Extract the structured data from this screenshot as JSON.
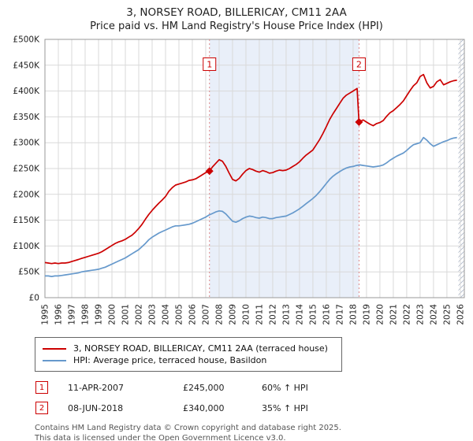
{
  "title": "3, NORSEY ROAD, BILLERICAY, CM11 2AA",
  "subtitle": "Price paid vs. HM Land Registry's House Price Index (HPI)",
  "chart_data": {
    "type": "line",
    "x_range": [
      1995,
      2026.3
    ],
    "y_range_thousands": [
      0,
      500
    ],
    "unit": "GBP thousands",
    "x_ticks": [
      1995,
      1996,
      1997,
      1998,
      1999,
      2000,
      2001,
      2002,
      2003,
      2004,
      2005,
      2006,
      2007,
      2008,
      2009,
      2010,
      2011,
      2012,
      2013,
      2014,
      2015,
      2016,
      2017,
      2018,
      2019,
      2020,
      2021,
      2022,
      2023,
      2024,
      2025,
      2026
    ],
    "y_ticks": [
      [
        0,
        "£0"
      ],
      [
        50,
        "£50K"
      ],
      [
        100,
        "£100K"
      ],
      [
        150,
        "£150K"
      ],
      [
        200,
        "£200K"
      ],
      [
        250,
        "£250K"
      ],
      [
        300,
        "£300K"
      ],
      [
        350,
        "£350K"
      ],
      [
        400,
        "£400K"
      ],
      [
        450,
        "£450K"
      ],
      [
        500,
        "£500K"
      ]
    ],
    "grid": true,
    "legend_position": "bottom",
    "colors": {
      "property": "#cc0000",
      "hpi": "#6699cc",
      "shade": "#e9eff9",
      "grid": "#d9d9d9",
      "event_line": "#dd8888",
      "plot_border": "#999999"
    },
    "shaded_region": [
      2007.28,
      2018.44
    ],
    "hatched_region": [
      2025.85,
      2026.3
    ],
    "event_label_y": 452,
    "series": [
      {
        "name": "3, NORSEY ROAD, BILLERICAY, CM11 2AA (terraced house)",
        "color": "#cc0000",
        "points": [
          [
            1995,
            68
          ],
          [
            1995.25,
            67
          ],
          [
            1995.5,
            66
          ],
          [
            1995.75,
            67
          ],
          [
            1996,
            66
          ],
          [
            1996.25,
            67
          ],
          [
            1996.5,
            67
          ],
          [
            1996.75,
            68
          ],
          [
            1997,
            70
          ],
          [
            1997.25,
            72
          ],
          [
            1997.5,
            74
          ],
          [
            1997.75,
            76
          ],
          [
            1998,
            78
          ],
          [
            1998.25,
            80
          ],
          [
            1998.5,
            82
          ],
          [
            1998.75,
            84
          ],
          [
            1999,
            86
          ],
          [
            1999.25,
            89
          ],
          [
            1999.5,
            93
          ],
          [
            1999.75,
            97
          ],
          [
            2000,
            101
          ],
          [
            2000.25,
            105
          ],
          [
            2000.5,
            108
          ],
          [
            2000.75,
            110
          ],
          [
            2001,
            113
          ],
          [
            2001.25,
            117
          ],
          [
            2001.5,
            121
          ],
          [
            2001.75,
            127
          ],
          [
            2002,
            134
          ],
          [
            2002.25,
            142
          ],
          [
            2002.5,
            152
          ],
          [
            2002.75,
            161
          ],
          [
            2003,
            169
          ],
          [
            2003.25,
            176
          ],
          [
            2003.5,
            183
          ],
          [
            2003.75,
            189
          ],
          [
            2004,
            196
          ],
          [
            2004.25,
            206
          ],
          [
            2004.5,
            213
          ],
          [
            2004.75,
            218
          ],
          [
            2005,
            220
          ],
          [
            2005.25,
            222
          ],
          [
            2005.5,
            224
          ],
          [
            2005.75,
            227
          ],
          [
            2006,
            228
          ],
          [
            2006.25,
            230
          ],
          [
            2006.5,
            234
          ],
          [
            2006.75,
            238
          ],
          [
            2007,
            242
          ],
          [
            2007.28,
            245
          ],
          [
            2007.5,
            253
          ],
          [
            2007.75,
            260
          ],
          [
            2008,
            267
          ],
          [
            2008.25,
            264
          ],
          [
            2008.5,
            254
          ],
          [
            2008.75,
            241
          ],
          [
            2009,
            229
          ],
          [
            2009.25,
            226
          ],
          [
            2009.5,
            231
          ],
          [
            2009.75,
            239
          ],
          [
            2010,
            246
          ],
          [
            2010.25,
            250
          ],
          [
            2010.5,
            248
          ],
          [
            2010.75,
            245
          ],
          [
            2011,
            243
          ],
          [
            2011.25,
            246
          ],
          [
            2011.5,
            244
          ],
          [
            2011.75,
            241
          ],
          [
            2012,
            242
          ],
          [
            2012.25,
            245
          ],
          [
            2012.5,
            247
          ],
          [
            2012.75,
            246
          ],
          [
            2013,
            247
          ],
          [
            2013.25,
            250
          ],
          [
            2013.5,
            254
          ],
          [
            2013.75,
            258
          ],
          [
            2014,
            263
          ],
          [
            2014.25,
            270
          ],
          [
            2014.5,
            276
          ],
          [
            2014.75,
            281
          ],
          [
            2015,
            286
          ],
          [
            2015.25,
            296
          ],
          [
            2015.5,
            306
          ],
          [
            2015.75,
            318
          ],
          [
            2016,
            331
          ],
          [
            2016.25,
            345
          ],
          [
            2016.5,
            356
          ],
          [
            2016.75,
            366
          ],
          [
            2017,
            376
          ],
          [
            2017.25,
            386
          ],
          [
            2017.5,
            392
          ],
          [
            2017.75,
            396
          ],
          [
            2018,
            400
          ],
          [
            2018.3,
            405
          ],
          [
            2018.44,
            340
          ],
          [
            2018.75,
            344
          ],
          [
            2019,
            340
          ],
          [
            2019.25,
            336
          ],
          [
            2019.5,
            333
          ],
          [
            2019.75,
            337
          ],
          [
            2020,
            339
          ],
          [
            2020.25,
            343
          ],
          [
            2020.5,
            351
          ],
          [
            2020.75,
            358
          ],
          [
            2021,
            362
          ],
          [
            2021.25,
            368
          ],
          [
            2021.5,
            374
          ],
          [
            2021.75,
            381
          ],
          [
            2022,
            391
          ],
          [
            2022.25,
            401
          ],
          [
            2022.5,
            410
          ],
          [
            2022.75,
            416
          ],
          [
            2023,
            428
          ],
          [
            2023.25,
            432
          ],
          [
            2023.5,
            416
          ],
          [
            2023.75,
            406
          ],
          [
            2024,
            409
          ],
          [
            2024.25,
            418
          ],
          [
            2024.5,
            422
          ],
          [
            2024.75,
            412
          ],
          [
            2025,
            415
          ],
          [
            2025.25,
            418
          ],
          [
            2025.5,
            420
          ],
          [
            2025.75,
            421
          ]
        ]
      },
      {
        "name": "HPI: Average price, terraced house, Basildon",
        "color": "#6699cc",
        "points": [
          [
            1995,
            42
          ],
          [
            1995.25,
            42
          ],
          [
            1995.5,
            41
          ],
          [
            1995.75,
            42
          ],
          [
            1996,
            42
          ],
          [
            1996.25,
            43
          ],
          [
            1996.5,
            44
          ],
          [
            1996.75,
            45
          ],
          [
            1997,
            46
          ],
          [
            1997.25,
            47
          ],
          [
            1997.5,
            48
          ],
          [
            1997.75,
            50
          ],
          [
            1998,
            51
          ],
          [
            1998.25,
            52
          ],
          [
            1998.5,
            53
          ],
          [
            1998.75,
            54
          ],
          [
            1999,
            55
          ],
          [
            1999.25,
            57
          ],
          [
            1999.5,
            59
          ],
          [
            1999.75,
            62
          ],
          [
            2000,
            65
          ],
          [
            2000.25,
            68
          ],
          [
            2000.5,
            71
          ],
          [
            2000.75,
            74
          ],
          [
            2001,
            77
          ],
          [
            2001.25,
            81
          ],
          [
            2001.5,
            85
          ],
          [
            2001.75,
            89
          ],
          [
            2002,
            93
          ],
          [
            2002.25,
            99
          ],
          [
            2002.5,
            105
          ],
          [
            2002.75,
            112
          ],
          [
            2003,
            117
          ],
          [
            2003.25,
            121
          ],
          [
            2003.5,
            125
          ],
          [
            2003.75,
            128
          ],
          [
            2004,
            131
          ],
          [
            2004.25,
            134
          ],
          [
            2004.5,
            137
          ],
          [
            2004.75,
            139
          ],
          [
            2005,
            139
          ],
          [
            2005.25,
            140
          ],
          [
            2005.5,
            141
          ],
          [
            2005.75,
            142
          ],
          [
            2006,
            144
          ],
          [
            2006.25,
            147
          ],
          [
            2006.5,
            150
          ],
          [
            2006.75,
            153
          ],
          [
            2007,
            156
          ],
          [
            2007.25,
            160
          ],
          [
            2007.5,
            163
          ],
          [
            2007.75,
            166
          ],
          [
            2008,
            168
          ],
          [
            2008.25,
            167
          ],
          [
            2008.5,
            162
          ],
          [
            2008.75,
            155
          ],
          [
            2009,
            148
          ],
          [
            2009.25,
            146
          ],
          [
            2009.5,
            149
          ],
          [
            2009.75,
            153
          ],
          [
            2010,
            156
          ],
          [
            2010.25,
            158
          ],
          [
            2010.5,
            157
          ],
          [
            2010.75,
            155
          ],
          [
            2011,
            154
          ],
          [
            2011.25,
            156
          ],
          [
            2011.5,
            155
          ],
          [
            2011.75,
            153
          ],
          [
            2012,
            153
          ],
          [
            2012.25,
            155
          ],
          [
            2012.5,
            156
          ],
          [
            2012.75,
            157
          ],
          [
            2013,
            158
          ],
          [
            2013.25,
            161
          ],
          [
            2013.5,
            164
          ],
          [
            2013.75,
            168
          ],
          [
            2014,
            172
          ],
          [
            2014.25,
            177
          ],
          [
            2014.5,
            182
          ],
          [
            2014.75,
            187
          ],
          [
            2015,
            192
          ],
          [
            2015.25,
            198
          ],
          [
            2015.5,
            205
          ],
          [
            2015.75,
            213
          ],
          [
            2016,
            221
          ],
          [
            2016.25,
            229
          ],
          [
            2016.5,
            235
          ],
          [
            2016.75,
            240
          ],
          [
            2017,
            244
          ],
          [
            2017.25,
            248
          ],
          [
            2017.5,
            251
          ],
          [
            2017.75,
            253
          ],
          [
            2018,
            254
          ],
          [
            2018.25,
            256
          ],
          [
            2018.5,
            257
          ],
          [
            2018.75,
            256
          ],
          [
            2019,
            255
          ],
          [
            2019.25,
            254
          ],
          [
            2019.5,
            253
          ],
          [
            2019.75,
            254
          ],
          [
            2020,
            255
          ],
          [
            2020.25,
            257
          ],
          [
            2020.5,
            261
          ],
          [
            2020.75,
            266
          ],
          [
            2021,
            270
          ],
          [
            2021.25,
            274
          ],
          [
            2021.5,
            277
          ],
          [
            2021.75,
            280
          ],
          [
            2022,
            285
          ],
          [
            2022.25,
            291
          ],
          [
            2022.5,
            296
          ],
          [
            2022.75,
            298
          ],
          [
            2023,
            300
          ],
          [
            2023.25,
            310
          ],
          [
            2023.5,
            305
          ],
          [
            2023.75,
            298
          ],
          [
            2024,
            293
          ],
          [
            2024.25,
            296
          ],
          [
            2024.5,
            299
          ],
          [
            2024.75,
            302
          ],
          [
            2025,
            304
          ],
          [
            2025.25,
            307
          ],
          [
            2025.5,
            309
          ],
          [
            2025.75,
            310
          ]
        ]
      }
    ],
    "sales": [
      {
        "n": "1",
        "x": 2007.28,
        "y": 245,
        "date": "11-APR-2007",
        "price": "£245,000",
        "hpi": "60% ↑ HPI"
      },
      {
        "n": "2",
        "x": 2018.44,
        "y": 340,
        "date": "08-JUN-2018",
        "price": "£340,000",
        "hpi": "35% ↑ HPI"
      }
    ]
  },
  "footer": {
    "line1": "Contains HM Land Registry data © Crown copyright and database right 2025.",
    "line2": "This data is licensed under the Open Government Licence v3.0."
  }
}
